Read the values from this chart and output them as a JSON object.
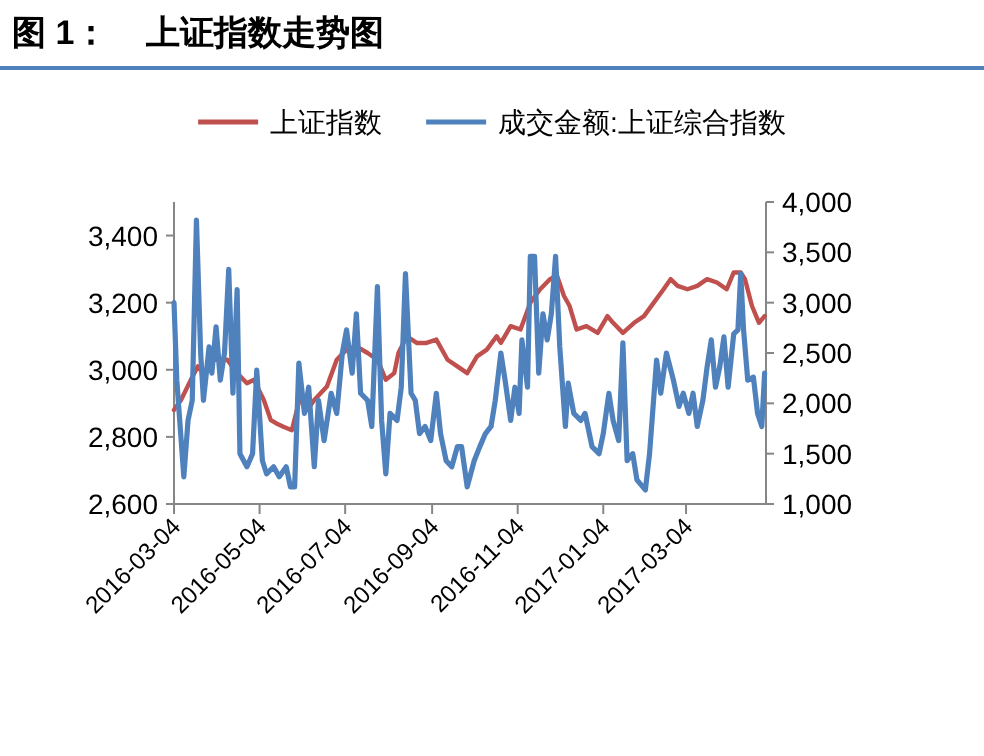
{
  "chart_data": {
    "type": "line",
    "title": "图 1：    上证指数走势图",
    "xlim": [
      "2016-03-04",
      "2017-04-30"
    ],
    "xticks": [
      "2016-03-04",
      "2016-05-04",
      "2016-07-04",
      "2016-09-04",
      "2016-11-04",
      "2017-01-04",
      "2017-03-04"
    ],
    "ylim": [
      2600,
      3500
    ],
    "yticks": [
      {
        "value": 2600,
        "label": "2,600"
      },
      {
        "value": 2800,
        "label": "2,800"
      },
      {
        "value": 3000,
        "label": "3,000"
      },
      {
        "value": 3200,
        "label": "3,200"
      },
      {
        "value": 3400,
        "label": "3,400"
      }
    ],
    "y2lim": [
      1000,
      4000
    ],
    "y2ticks": [
      {
        "value": 1000,
        "label": "1,000"
      },
      {
        "value": 1500,
        "label": "1,500"
      },
      {
        "value": 2000,
        "label": "2,000"
      },
      {
        "value": 2500,
        "label": "2,500"
      },
      {
        "value": 3000,
        "label": "3,000"
      },
      {
        "value": 3500,
        "label": "3,500"
      },
      {
        "value": 4000,
        "label": "4,000"
      }
    ],
    "grid": false,
    "legend": "top",
    "line_style": "solid",
    "series": [
      {
        "name": "上证指数",
        "color": "#c0504d",
        "x": [
          "2016-03-04",
          "2016-03-09",
          "2016-03-16",
          "2016-03-21",
          "2016-03-25",
          "2016-04-01",
          "2016-04-11",
          "2016-04-18",
          "2016-04-25",
          "2016-04-30",
          "2016-05-07",
          "2016-05-12",
          "2016-05-16",
          "2016-05-21",
          "2016-05-27",
          "2016-06-02",
          "2016-06-07",
          "2016-06-12",
          "2016-06-21",
          "2016-06-28",
          "2016-07-05",
          "2016-07-12",
          "2016-07-20",
          "2016-07-27",
          "2016-08-02",
          "2016-08-08",
          "2016-08-11",
          "2016-08-17",
          "2016-08-24",
          "2016-08-31",
          "2016-09-07",
          "2016-09-15",
          "2016-09-22",
          "2016-09-29",
          "2016-10-06",
          "2016-10-13",
          "2016-10-20",
          "2016-10-23",
          "2016-10-30",
          "2016-11-06",
          "2016-11-13",
          "2016-11-20",
          "2016-11-27",
          "2016-12-02",
          "2016-12-07",
          "2016-12-11",
          "2016-12-16",
          "2016-12-23",
          "2016-12-31",
          "2017-01-07",
          "2017-01-11",
          "2017-01-18",
          "2017-01-26",
          "2017-02-02",
          "2017-02-09",
          "2017-02-16",
          "2017-02-21",
          "2017-02-26",
          "2017-03-05",
          "2017-03-12",
          "2017-03-19",
          "2017-03-26",
          "2017-04-02",
          "2017-04-07",
          "2017-04-12",
          "2017-04-15",
          "2017-04-20",
          "2017-04-25",
          "2017-04-29"
        ],
        "values": [
          2880,
          2910,
          2970,
          3010,
          2990,
          3030,
          3030,
          2990,
          2960,
          2970,
          2910,
          2850,
          2840,
          2830,
          2820,
          2920,
          2880,
          2910,
          2950,
          3030,
          3060,
          3070,
          3050,
          3030,
          2970,
          2990,
          3050,
          3100,
          3080,
          3080,
          3090,
          3030,
          3010,
          2990,
          3040,
          3060,
          3100,
          3080,
          3130,
          3120,
          3200,
          3240,
          3270,
          3280,
          3220,
          3190,
          3120,
          3130,
          3110,
          3160,
          3140,
          3110,
          3140,
          3160,
          3200,
          3240,
          3270,
          3250,
          3240,
          3250,
          3270,
          3260,
          3240,
          3290,
          3290,
          3270,
          3190,
          3140,
          3160
        ]
      },
      {
        "name": "成交金额:上证综合指数",
        "color": "#4f81bd",
        "axis": "y2",
        "x": [
          "2016-03-04",
          "2016-03-06",
          "2016-03-11",
          "2016-03-14",
          "2016-03-17",
          "2016-03-20",
          "2016-03-23",
          "2016-03-25",
          "2016-03-29",
          "2016-03-31",
          "2016-04-03",
          "2016-04-06",
          "2016-04-09",
          "2016-04-12",
          "2016-04-15",
          "2016-04-18",
          "2016-04-20",
          "2016-04-25",
          "2016-04-29",
          "2016-05-02",
          "2016-05-06",
          "2016-05-09",
          "2016-05-14",
          "2016-05-18",
          "2016-05-23",
          "2016-05-26",
          "2016-05-29",
          "2016-06-01",
          "2016-06-05",
          "2016-06-08",
          "2016-06-12",
          "2016-06-15",
          "2016-06-19",
          "2016-06-24",
          "2016-06-28",
          "2016-07-02",
          "2016-07-05",
          "2016-07-09",
          "2016-07-12",
          "2016-07-15",
          "2016-07-20",
          "2016-07-23",
          "2016-07-27",
          "2016-07-30",
          "2016-08-02",
          "2016-08-05",
          "2016-08-10",
          "2016-08-13",
          "2016-08-16",
          "2016-08-20",
          "2016-08-23",
          "2016-08-26",
          "2016-08-30",
          "2016-09-03",
          "2016-09-07",
          "2016-09-10",
          "2016-09-14",
          "2016-09-18",
          "2016-09-22",
          "2016-09-25",
          "2016-09-29",
          "2016-10-04",
          "2016-10-08",
          "2016-10-12",
          "2016-10-16",
          "2016-10-19",
          "2016-10-23",
          "2016-10-26",
          "2016-10-30",
          "2016-11-02",
          "2016-11-05",
          "2016-11-07",
          "2016-11-11",
          "2016-11-13",
          "2016-11-16",
          "2016-11-19",
          "2016-11-22",
          "2016-11-25",
          "2016-11-28",
          "2016-12-01",
          "2016-12-04",
          "2016-12-08",
          "2016-12-10",
          "2016-12-14",
          "2016-12-19",
          "2016-12-22",
          "2016-12-27",
          "2017-01-01",
          "2017-01-04",
          "2017-01-08",
          "2017-01-11",
          "2017-01-15",
          "2017-01-18",
          "2017-01-21",
          "2017-01-25",
          "2017-01-28",
          "2017-02-03",
          "2017-02-06",
          "2017-02-11",
          "2017-02-14",
          "2017-02-18",
          "2017-02-23",
          "2017-02-27",
          "2017-03-02",
          "2017-03-06",
          "2017-03-09",
          "2017-03-12",
          "2017-03-16",
          "2017-03-19",
          "2017-03-22",
          "2017-03-25",
          "2017-03-28",
          "2017-03-31",
          "2017-04-03",
          "2017-04-07",
          "2017-04-10",
          "2017-04-12",
          "2017-04-14",
          "2017-04-17",
          "2017-04-21",
          "2017-04-24",
          "2017-04-27",
          "2017-04-29"
        ],
        "values": [
          3000,
          2230,
          1270,
          1830,
          2030,
          3820,
          2500,
          2030,
          2560,
          2300,
          2760,
          2230,
          2500,
          3330,
          2100,
          3130,
          1500,
          1370,
          1500,
          2330,
          1430,
          1300,
          1370,
          1270,
          1370,
          1170,
          1170,
          2400,
          1900,
          2160,
          1370,
          2030,
          1630,
          2100,
          1900,
          2500,
          2730,
          2300,
          2890,
          2100,
          2030,
          1770,
          3160,
          1830,
          1300,
          1900,
          1830,
          2160,
          3290,
          2100,
          2030,
          1700,
          1770,
          1630,
          2100,
          1700,
          1430,
          1370,
          1570,
          1570,
          1170,
          1430,
          1570,
          1700,
          1770,
          2030,
          2500,
          2230,
          1830,
          2160,
          1900,
          2630,
          2160,
          3460,
          3460,
          2300,
          2890,
          2630,
          2890,
          3460,
          2560,
          1770,
          2200,
          1900,
          1830,
          1900,
          1570,
          1500,
          1700,
          2100,
          1830,
          1630,
          2600,
          1430,
          1500,
          1240,
          1140,
          1500,
          2430,
          2100,
          2500,
          2230,
          1970,
          2100,
          1900,
          2100,
          1770,
          2030,
          2360,
          2630,
          2160,
          2360,
          2660,
          2160,
          2690,
          2730,
          3290,
          2730,
          2230,
          2260,
          1900,
          1770,
          2300
        ]
      }
    ]
  }
}
